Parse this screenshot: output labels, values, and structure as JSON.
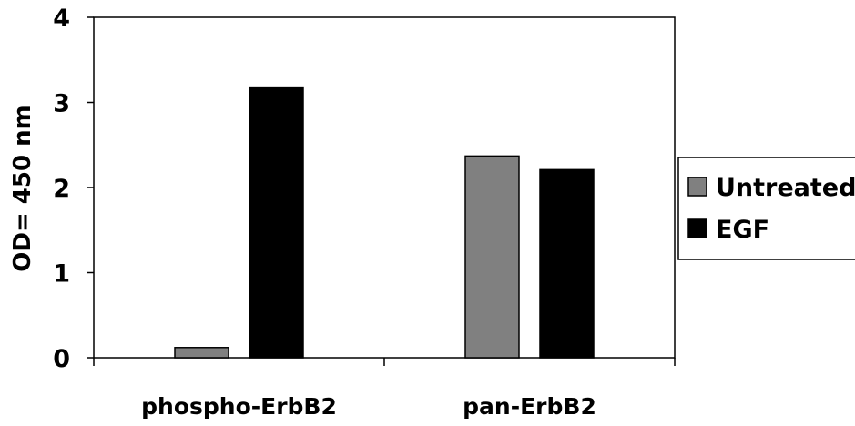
{
  "chart_data": {
    "type": "bar",
    "categories": [
      "phospho-ErbB2",
      "pan-ErbB2"
    ],
    "series": [
      {
        "name": "Untreated",
        "values": [
          0.12,
          2.37
        ],
        "color": "#808080"
      },
      {
        "name": "EGF",
        "values": [
          3.17,
          2.21
        ],
        "color": "#000000"
      }
    ],
    "title": "",
    "xlabel": "",
    "ylabel": "OD= 450 nm",
    "ylim": [
      0,
      4
    ],
    "yticks": [
      0,
      1,
      2,
      3,
      4
    ],
    "grid": false,
    "legend_position": "right"
  }
}
